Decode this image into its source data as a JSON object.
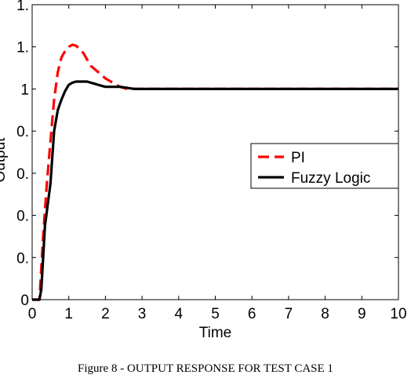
{
  "chart_data": {
    "type": "line",
    "xlabel": "Time",
    "ylabel": "Output",
    "xlim": [
      0,
      10
    ],
    "ylim": [
      0,
      1.4
    ],
    "x_ticks": [
      "0",
      "1",
      "2",
      "3",
      "4",
      "5",
      "6",
      "7",
      "8",
      "9",
      "10"
    ],
    "y_ticks": [
      "0",
      "0.",
      "0.",
      "0.",
      "0.",
      "1",
      "1.",
      "1."
    ],
    "legend_position": "middle-right",
    "series": [
      {
        "name": "PI",
        "color": "#ff0000",
        "style": "dashed",
        "x": [
          0,
          0.2,
          0.3,
          0.4,
          0.5,
          0.6,
          0.7,
          0.8,
          0.9,
          1.0,
          1.1,
          1.2,
          1.3,
          1.4,
          1.5,
          1.6,
          1.8,
          2.0,
          2.2,
          2.4,
          2.6,
          2.8,
          3.0,
          4.0,
          5.0,
          6.0,
          7.0,
          8.0,
          9.0,
          10.0
        ],
        "y": [
          0,
          0,
          0.3,
          0.55,
          0.75,
          0.95,
          1.08,
          1.15,
          1.18,
          1.2,
          1.21,
          1.205,
          1.19,
          1.17,
          1.14,
          1.11,
          1.08,
          1.05,
          1.03,
          1.01,
          1.0,
          1.0,
          1.0,
          1.0,
          1.0,
          1.0,
          1.0,
          1.0,
          1.0,
          1.0
        ]
      },
      {
        "name": "Fuzzy Logic",
        "color": "#000000",
        "style": "solid",
        "x": [
          0,
          0.2,
          0.25,
          0.35,
          0.5,
          0.6,
          0.7,
          0.8,
          0.9,
          1.0,
          1.1,
          1.2,
          1.3,
          1.4,
          1.5,
          1.6,
          1.7,
          1.8,
          1.9,
          2.0,
          2.2,
          2.4,
          2.6,
          2.8,
          3.0,
          4.0,
          5.0,
          6.0,
          7.0,
          8.0,
          9.0,
          10.0
        ],
        "y": [
          0,
          0,
          0.05,
          0.35,
          0.55,
          0.8,
          0.9,
          0.95,
          0.99,
          1.02,
          1.03,
          1.035,
          1.035,
          1.035,
          1.035,
          1.03,
          1.025,
          1.02,
          1.015,
          1.01,
          1.01,
          1.01,
          1.005,
          1.0,
          1.0,
          1.0,
          1.0,
          1.0,
          1.0,
          1.0,
          1.0,
          1.0
        ]
      }
    ]
  },
  "caption": "Figure 8 - OUTPUT RESPONSE FOR TEST CASE 1"
}
